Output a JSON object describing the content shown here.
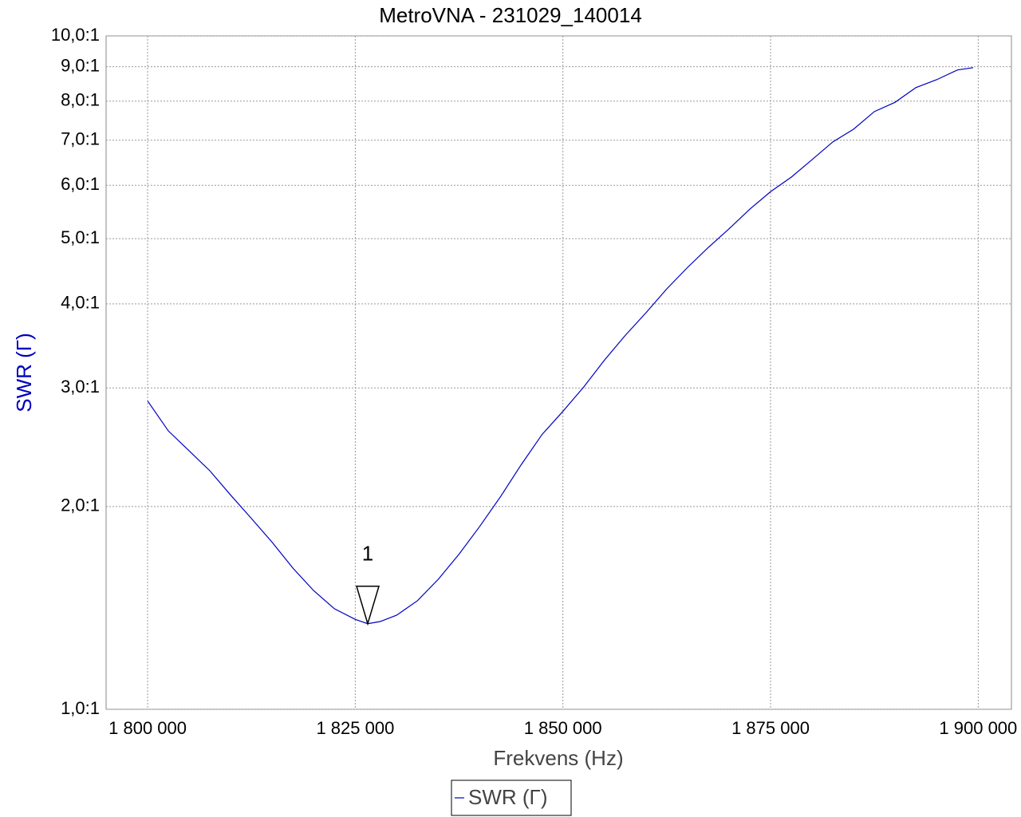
{
  "chart_data": {
    "type": "line",
    "title": "MetroVNA - 231029_140014",
    "x_label": "Frekvens (Hz)",
    "y_label": "SWR  (Γ)",
    "y_scale": "log",
    "grid": true,
    "legend": "bottom",
    "xlim": [
      1795000,
      1904000
    ],
    "ylim": [
      1,
      10
    ],
    "xticks": [
      {
        "value": 1800000,
        "label": "1 800 000"
      },
      {
        "value": 1825000,
        "label": "1 825 000"
      },
      {
        "value": 1850000,
        "label": "1 850 000"
      },
      {
        "value": 1875000,
        "label": "1 875 000"
      },
      {
        "value": 1900000,
        "label": "1 900 000"
      }
    ],
    "yticks": [
      {
        "value": 1,
        "label": "1,0:1"
      },
      {
        "value": 2,
        "label": "2,0:1"
      },
      {
        "value": 3,
        "label": "3,0:1"
      },
      {
        "value": 4,
        "label": "4,0:1"
      },
      {
        "value": 5,
        "label": "5,0:1"
      },
      {
        "value": 6,
        "label": "6,0:1"
      },
      {
        "value": 7,
        "label": "7,0:1"
      },
      {
        "value": 8,
        "label": "8,0:1"
      },
      {
        "value": 9,
        "label": "9,0:1"
      },
      {
        "value": 10,
        "label": "10,0:1"
      }
    ],
    "x": [
      1800000,
      1802500,
      1805000,
      1807500,
      1810000,
      1812500,
      1815000,
      1817500,
      1820000,
      1822500,
      1825000,
      1826500,
      1828000,
      1830000,
      1832500,
      1835000,
      1837500,
      1840000,
      1842500,
      1845000,
      1847500,
      1850000,
      1852500,
      1855000,
      1857500,
      1860000,
      1862500,
      1865000,
      1867500,
      1870000,
      1872500,
      1875000,
      1877500,
      1880000,
      1882500,
      1885000,
      1887500,
      1890000,
      1892500,
      1895000,
      1897500,
      1899400
    ],
    "series": [
      {
        "name": "SWR  (Γ)",
        "color": "#0000c0",
        "values": [
          2.87,
          2.59,
          2.42,
          2.26,
          2.08,
          1.92,
          1.77,
          1.62,
          1.5,
          1.41,
          1.36,
          1.34,
          1.35,
          1.38,
          1.45,
          1.56,
          1.7,
          1.87,
          2.07,
          2.31,
          2.56,
          2.77,
          3.01,
          3.3,
          3.59,
          3.88,
          4.21,
          4.53,
          4.85,
          5.17,
          5.53,
          5.87,
          6.17,
          6.55,
          6.96,
          7.27,
          7.72,
          7.97,
          8.38,
          8.61,
          8.9,
          8.97
        ]
      }
    ],
    "markers": [
      {
        "label": "1",
        "x": 1826500,
        "y": 1.34
      }
    ]
  }
}
